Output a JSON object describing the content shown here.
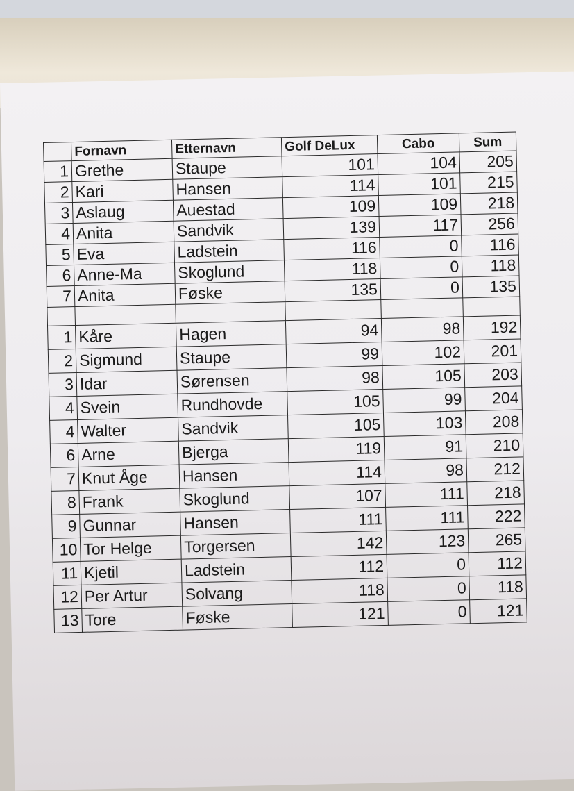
{
  "table": {
    "header": [
      "Fornavn",
      "Etternavn",
      "Golf DeLux",
      "Cabo",
      "Sum"
    ],
    "groups": [
      {
        "rows": [
          [
            1,
            "Grethe",
            "Staupe",
            101,
            104,
            205
          ],
          [
            2,
            "Kari",
            "Hansen",
            114,
            101,
            215
          ],
          [
            3,
            "Aslaug",
            "Auestad",
            109,
            109,
            218
          ],
          [
            4,
            "Anita",
            "Sandvik",
            139,
            117,
            256
          ],
          [
            5,
            "Eva",
            "Ladstein",
            116,
            0,
            116
          ],
          [
            6,
            "Anne-Ma",
            "Skoglund",
            118,
            0,
            118
          ],
          [
            7,
            "Anita",
            "Føske",
            135,
            0,
            135
          ]
        ]
      },
      {
        "rows": [
          [
            1,
            "Kåre",
            "Hagen",
            94,
            98,
            192
          ],
          [
            2,
            "Sigmund",
            "Staupe",
            99,
            102,
            201
          ],
          [
            3,
            "Idar",
            "Sørensen",
            98,
            105,
            203
          ],
          [
            4,
            "Svein",
            "Rundhovde",
            105,
            99,
            204
          ],
          [
            4,
            "Walter",
            "Sandvik",
            105,
            103,
            208
          ],
          [
            6,
            "Arne",
            "Bjerga",
            119,
            91,
            210
          ],
          [
            7,
            "Knut Åge",
            "Hansen",
            114,
            98,
            212
          ],
          [
            8,
            "Frank",
            "Skoglund",
            107,
            111,
            218
          ],
          [
            9,
            "Gunnar",
            "Hansen",
            111,
            111,
            222
          ],
          [
            10,
            "Tor Helge",
            "Torgersen",
            142,
            123,
            265
          ],
          [
            11,
            "Kjetil",
            "Ladstein",
            112,
            0,
            112
          ],
          [
            12,
            "Per Artur",
            "Solvang",
            118,
            0,
            118
          ],
          [
            13,
            "Tore",
            "Føske",
            121,
            0,
            121
          ]
        ]
      }
    ]
  }
}
